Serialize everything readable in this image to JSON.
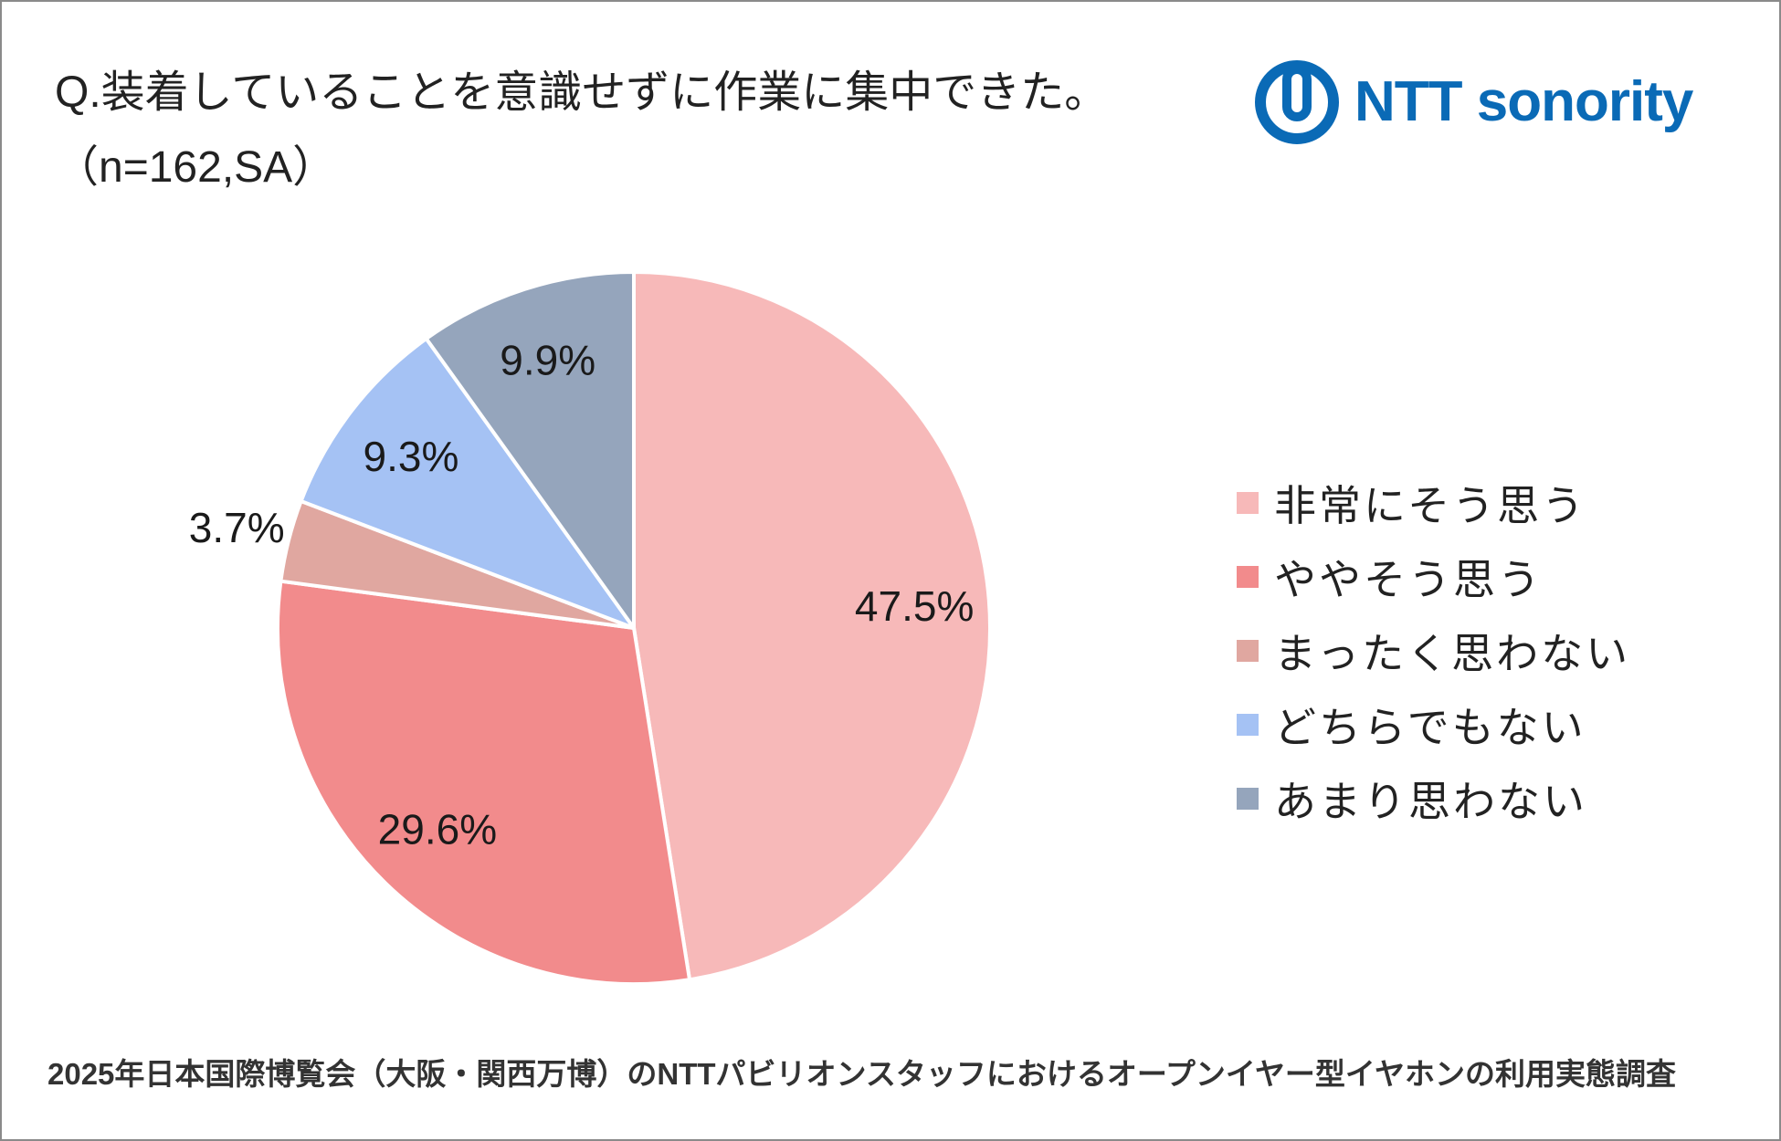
{
  "chart_data": {
    "type": "pie",
    "title": "Q.装着していることを意識せずに作業に集中できた。",
    "subtitle": "（n=162,SA）",
    "categories": [
      "非常にそう思う",
      "ややそう思う",
      "まったく思わない",
      "どちらでもない",
      "あまり思わない"
    ],
    "values": [
      47.5,
      29.6,
      3.7,
      9.3,
      9.9
    ],
    "data_labels": [
      "47.5%",
      "29.6%",
      "3.7%",
      "9.3%",
      "9.9%"
    ],
    "colors": [
      "#F7B9B9",
      "#F28B8C",
      "#E0A7A0",
      "#A5C2F4",
      "#95A5BC"
    ],
    "legend_position": "right"
  },
  "logo": {
    "text": "NTT sonority",
    "icon": "ntt-ring-icon",
    "color": "#0A6AB6"
  },
  "footer": {
    "note": "2025年日本国際博覧会（大阪・関西万博）のNTTパビリオンスタッフにおけるオープンイヤー型イヤホンの利用実態調査"
  }
}
